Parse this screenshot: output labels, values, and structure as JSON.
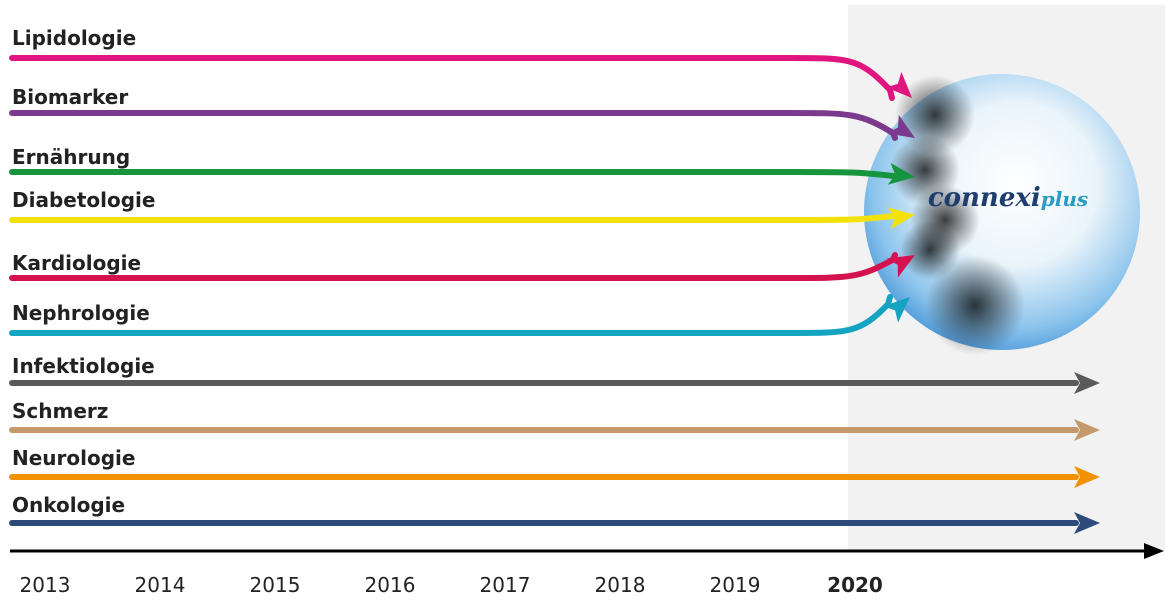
{
  "tracks": [
    {
      "label": "Lipidologie",
      "color": "#e0157f"
    },
    {
      "label": "Biomarker",
      "color": "#7b3a8e"
    },
    {
      "label": "Ernährung",
      "color": "#16953e"
    },
    {
      "label": "Diabetologie",
      "color": "#f2e20a"
    },
    {
      "label": "Kardiologie",
      "color": "#d4124f"
    },
    {
      "label": "Nephrologie",
      "color": "#14a3c0"
    },
    {
      "label": "Infektiologie",
      "color": "#5a5a5a"
    },
    {
      "label": "Schmerz",
      "color": "#c49a6c"
    },
    {
      "label": "Neurologie",
      "color": "#f39200"
    },
    {
      "label": "Onkologie",
      "color": "#2e4a7a"
    }
  ],
  "timeline": {
    "years": [
      "2013",
      "2014",
      "2015",
      "2016",
      "2017",
      "2018",
      "2019",
      "2020"
    ]
  },
  "logo": {
    "brand": "connexi",
    "suffix": "plus"
  }
}
